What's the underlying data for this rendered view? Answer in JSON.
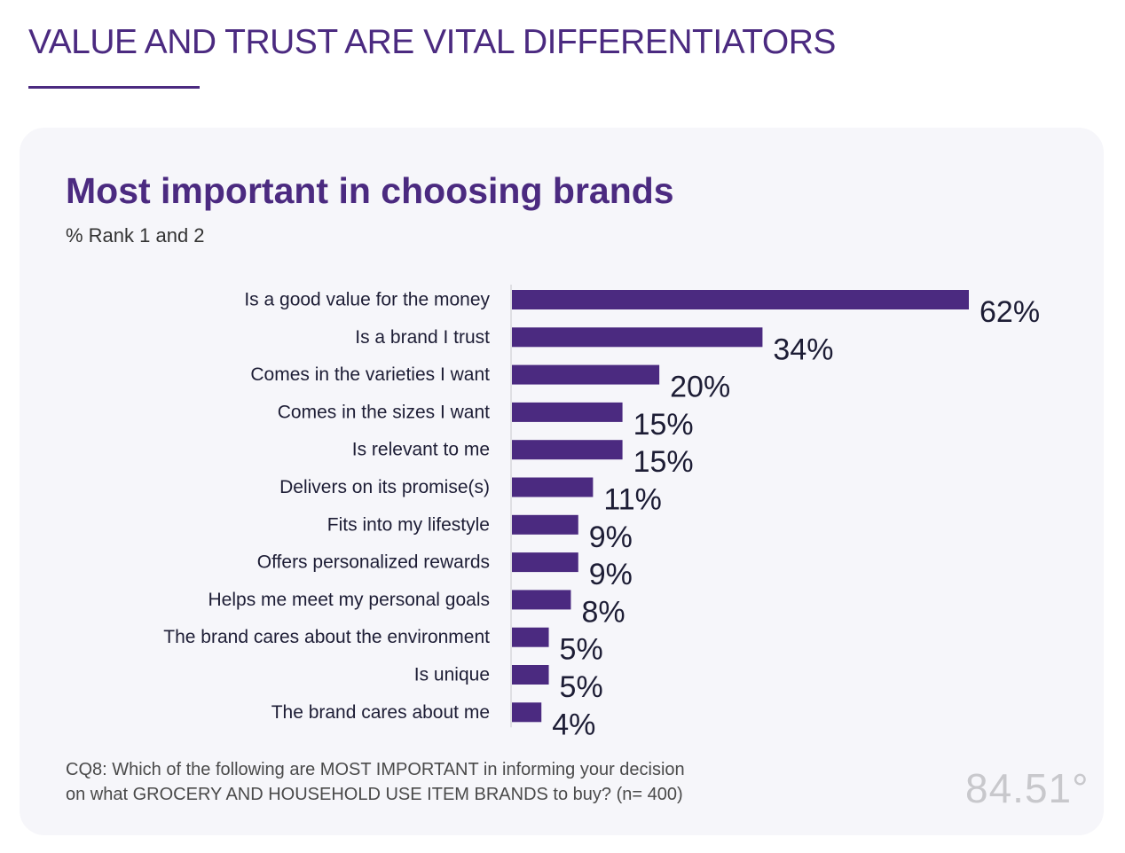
{
  "header": {
    "title": "VALUE AND TRUST ARE VITAL DIFFERENTIATORS"
  },
  "chart_data": {
    "type": "bar",
    "orientation": "horizontal",
    "title": "Most important in choosing brands",
    "subtitle": "% Rank 1 and 2",
    "categories": [
      "Is a good value for the money",
      "Is a brand I trust",
      "Comes in the varieties I want",
      "Comes in the sizes I want",
      "Is relevant to me",
      "Delivers on its promise(s)",
      "Fits into my lifestyle",
      "Offers personalized rewards",
      "Helps me meet my personal goals",
      "The brand cares about the environment",
      "Is unique",
      "The brand cares about me"
    ],
    "values": [
      62,
      34,
      20,
      15,
      15,
      11,
      9,
      9,
      8,
      5,
      5,
      4
    ],
    "value_labels": [
      "62%",
      "34%",
      "20%",
      "15%",
      "15%",
      "11%",
      "9%",
      "9%",
      "8%",
      "5%",
      "5%",
      "4%"
    ],
    "xlim": [
      0,
      62
    ],
    "grid": false,
    "bar_color": "#4b2a80"
  },
  "footnote": {
    "line1": "CQ8: Which of the following are MOST IMPORTANT in informing your decision",
    "line2": "on what GROCERY AND HOUSEHOLD USE ITEM BRANDS to buy? (n= 400)"
  },
  "logo": {
    "text": "84.51°"
  },
  "colors": {
    "brand_purple": "#4b2a80",
    "card_background": "#f6f6fa",
    "value_label": "#1d1d35"
  }
}
